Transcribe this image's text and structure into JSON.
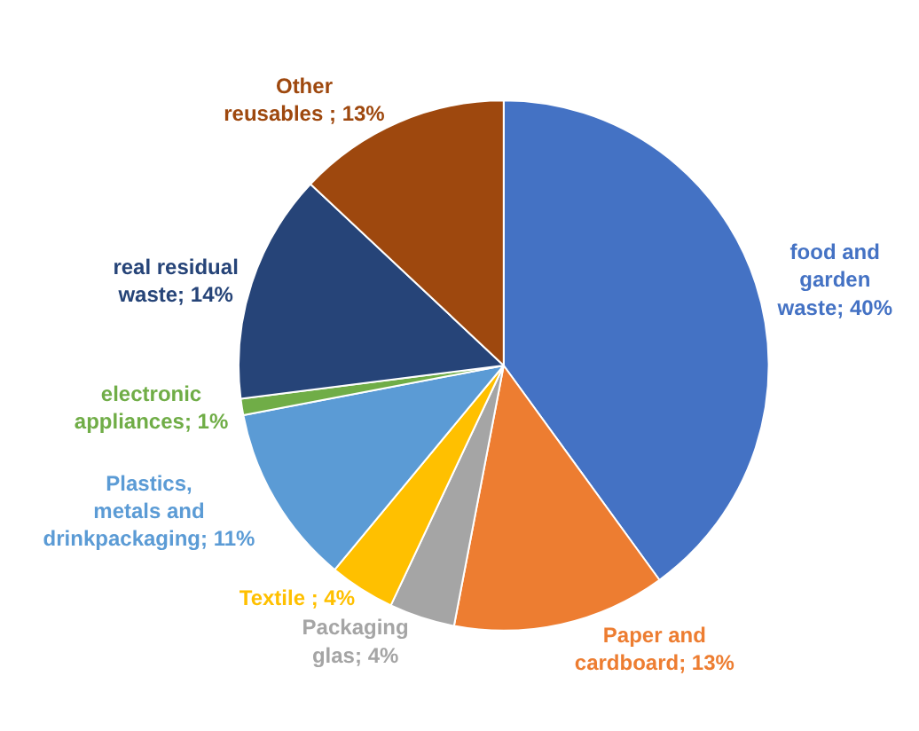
{
  "chart_data": {
    "type": "pie",
    "categories": [
      "food and garden waste",
      "Paper and cardboard",
      "Packaging glas",
      "Textile ",
      "Plastics, metals and drinkpackaging",
      "electronic appliances",
      "real residual waste",
      "Other reusables "
    ],
    "values": [
      40,
      13,
      4,
      4,
      11,
      1,
      14,
      13
    ],
    "value_labels": [
      "40%",
      "13%",
      "4%",
      "4%",
      "11%",
      "1%",
      "14%",
      "13%"
    ],
    "colors": [
      "#4472c4",
      "#ed7d31",
      "#a5a5a5",
      "#ffc000",
      "#5b9bd5",
      "#70ad47",
      "#264478",
      "#9e480e"
    ],
    "legend": false
  }
}
